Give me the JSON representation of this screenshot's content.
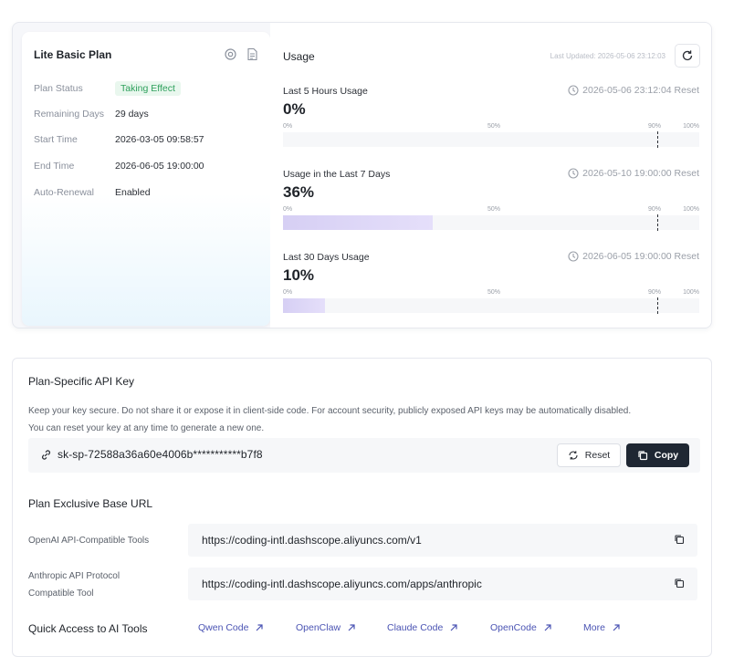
{
  "plan": {
    "title": "Lite Basic Plan",
    "icons": [
      "settings-circle-icon",
      "document-icon"
    ],
    "rows": [
      {
        "label": "Plan Status",
        "value": "Taking Effect",
        "type": "badge"
      },
      {
        "label": "Remaining Days",
        "value": "29 days"
      },
      {
        "label": "Start Time",
        "value": "2026-03-05 09:58:57"
      },
      {
        "label": "End Time",
        "value": "2026-06-05 19:00:00"
      },
      {
        "label": "Auto-Renewal",
        "value": "Enabled"
      }
    ]
  },
  "usage": {
    "title": "Usage",
    "last_updated": "Last Updated: 2026-05-06 23:12:03",
    "scale": {
      "p0": "0%",
      "p50": "50%",
      "p90": "90%",
      "p100": "100%"
    },
    "blocks": [
      {
        "label": "Last 5 Hours Usage",
        "reset": "2026-05-06 23:12:04 Reset",
        "percent_text": "0%",
        "fill_fraction": 0.0
      },
      {
        "label": "Usage in the Last 7 Days",
        "reset": "2026-05-10 19:00:00 Reset",
        "percent_text": "36%",
        "fill_fraction": 0.36
      },
      {
        "label": "Last 30 Days Usage",
        "reset": "2026-06-05 19:00:00 Reset",
        "percent_text": "10%",
        "fill_fraction": 0.1
      }
    ],
    "threshold_fraction": 0.9
  },
  "api_key": {
    "title": "Plan-Specific API Key",
    "description_line1": "Keep your key secure. Do not share it or expose it in client-side code. For account security, publicly exposed API keys may be automatically disabled.",
    "description_line2": "You can reset your key at any time to generate a new one.",
    "key": "sk-sp-72588a36a60e4006b***********b7f8",
    "reset_label": "Reset",
    "copy_label": "Copy"
  },
  "base_url": {
    "title": "Plan Exclusive Base URL",
    "openai_label": "OpenAI API-Compatible Tools",
    "openai_url": "https://coding-intl.dashscope.aliyuncs.com/v1",
    "anthropic_label_line1": "Anthropic API Protocol",
    "anthropic_label_line2": "Compatible Tool",
    "anthropic_url": "https://coding-intl.dashscope.aliyuncs.com/apps/anthropic"
  },
  "quick_access": {
    "title": "Quick Access to AI Tools",
    "links": [
      "Qwen Code",
      "OpenClaw",
      "Claude Code",
      "OpenCode",
      "More"
    ]
  }
}
